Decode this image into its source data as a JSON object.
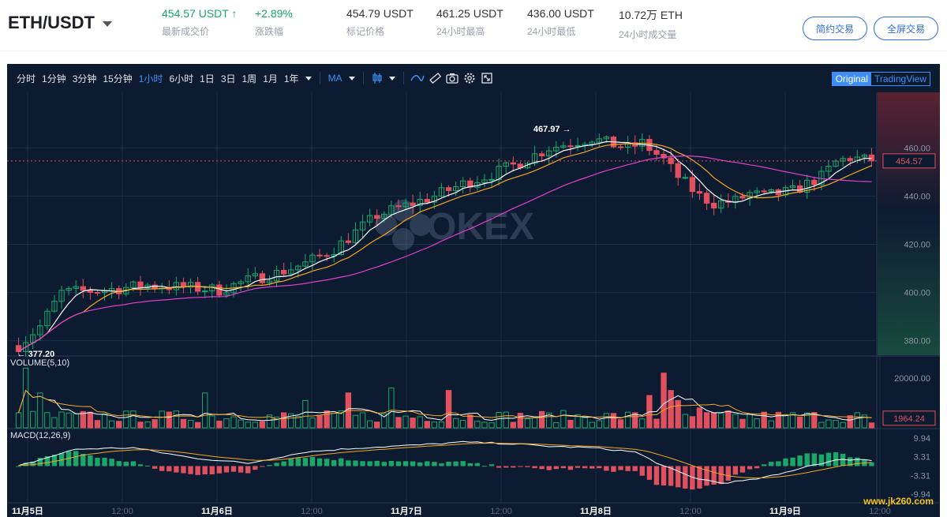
{
  "header": {
    "pair": "ETH/USDT",
    "stats": [
      {
        "value": "454.57 USDT ↑",
        "label": "最新成交价",
        "green": true
      },
      {
        "value": "+2.89%",
        "label": "涨跌幅",
        "green": true
      },
      {
        "value": "454.79 USDT",
        "label": "标记价格",
        "green": false
      },
      {
        "value": "461.25 USDT",
        "label": "24小时最高",
        "green": false
      },
      {
        "value": "436.00 USDT",
        "label": "24小时最低",
        "green": false
      },
      {
        "value": "10.72万 ETH",
        "label": "24小时成交量",
        "green": false
      }
    ],
    "buttons": [
      "简约交易",
      "全屏交易"
    ]
  },
  "toolbar": {
    "intervals": [
      "分时",
      "1分钟",
      "3分钟",
      "15分钟",
      "1小时",
      "6小时",
      "1日",
      "3日",
      "1周",
      "1月",
      "1年"
    ],
    "active_interval": "1小时",
    "indicator": "MA",
    "view_original": "Original",
    "view_tradingview": "TradingView",
    "icons": [
      "candle-type-icon",
      "line-tool-icon",
      "ruler-icon",
      "camera-icon",
      "settings-icon",
      "fullscreen-icon"
    ]
  },
  "chart_data": {
    "type": "candlestick",
    "watermark": "OKEX",
    "price_axis_ticks": [
      "460.00",
      "440.00",
      "420.00",
      "400.00",
      "380.00"
    ],
    "price_range": [
      374,
      483
    ],
    "last_price": "454.57",
    "high_marker": "467.97",
    "low_marker": "377.20",
    "volume_label": "VOLUME(5,10)",
    "volume_axis_tick": "20000.00",
    "volume_last": "1964.24",
    "volume_max": 26000,
    "macd_label": "MACD(12,26,9)",
    "macd_axis_ticks": [
      "9.94",
      "3.31",
      "-3.31",
      "-9.94"
    ],
    "macd_range": [
      -13,
      13
    ],
    "x_ticks": [
      "11月5日",
      "12:00",
      "11月6日",
      "12:00",
      "11月7日",
      "12:00",
      "11月8日",
      "12:00",
      "11月9日",
      "12:00"
    ],
    "x_tick_bold": [
      true,
      false,
      true,
      false,
      true,
      false,
      true,
      false,
      true,
      false
    ],
    "candle_count": 120,
    "price_path": [
      [
        0,
        378
      ],
      [
        3,
        386
      ],
      [
        6,
        400
      ],
      [
        12,
        401
      ],
      [
        18,
        403
      ],
      [
        24,
        402
      ],
      [
        28,
        401
      ],
      [
        32,
        405
      ],
      [
        36,
        408
      ],
      [
        40,
        412
      ],
      [
        44,
        418
      ],
      [
        47,
        425
      ],
      [
        50,
        432
      ],
      [
        54,
        436
      ],
      [
        58,
        440
      ],
      [
        62,
        445
      ],
      [
        66,
        449
      ],
      [
        70,
        454
      ],
      [
        74,
        460
      ],
      [
        77,
        462
      ],
      [
        80,
        464
      ],
      [
        82,
        462
      ],
      [
        85,
        460
      ],
      [
        87,
        462
      ],
      [
        90,
        455
      ],
      [
        92,
        448
      ],
      [
        95,
        440
      ],
      [
        97,
        437
      ],
      [
        100,
        438
      ],
      [
        102,
        441
      ],
      [
        104,
        440
      ],
      [
        106,
        441
      ],
      [
        108,
        442
      ],
      [
        110,
        445
      ],
      [
        112,
        448
      ],
      [
        114,
        454
      ],
      [
        116,
        456
      ],
      [
        118,
        455
      ],
      [
        119,
        454.57
      ]
    ],
    "volume_highs": [
      [
        1,
        24000
      ],
      [
        3,
        14000
      ],
      [
        26,
        14000
      ],
      [
        40,
        11000
      ],
      [
        46,
        14000
      ],
      [
        52,
        16000
      ],
      [
        60,
        15000
      ],
      [
        88,
        13000
      ],
      [
        90,
        22000
      ],
      [
        91,
        15000
      ],
      [
        92,
        11000
      ],
      [
        95,
        8000
      ]
    ],
    "macd_path": [
      [
        0,
        0
      ],
      [
        8,
        6
      ],
      [
        16,
        6.5
      ],
      [
        24,
        3
      ],
      [
        32,
        1
      ],
      [
        40,
        5
      ],
      [
        48,
        6.5
      ],
      [
        56,
        7.5
      ],
      [
        62,
        8.5
      ],
      [
        68,
        8
      ],
      [
        74,
        7
      ],
      [
        80,
        6.5
      ],
      [
        86,
        5
      ],
      [
        90,
        0
      ],
      [
        94,
        -4
      ],
      [
        98,
        -6
      ],
      [
        102,
        -5
      ],
      [
        106,
        -3
      ],
      [
        110,
        0
      ],
      [
        114,
        2
      ],
      [
        117,
        2.5
      ],
      [
        119,
        2
      ]
    ]
  },
  "watermark_site": "www.jk260.com"
}
